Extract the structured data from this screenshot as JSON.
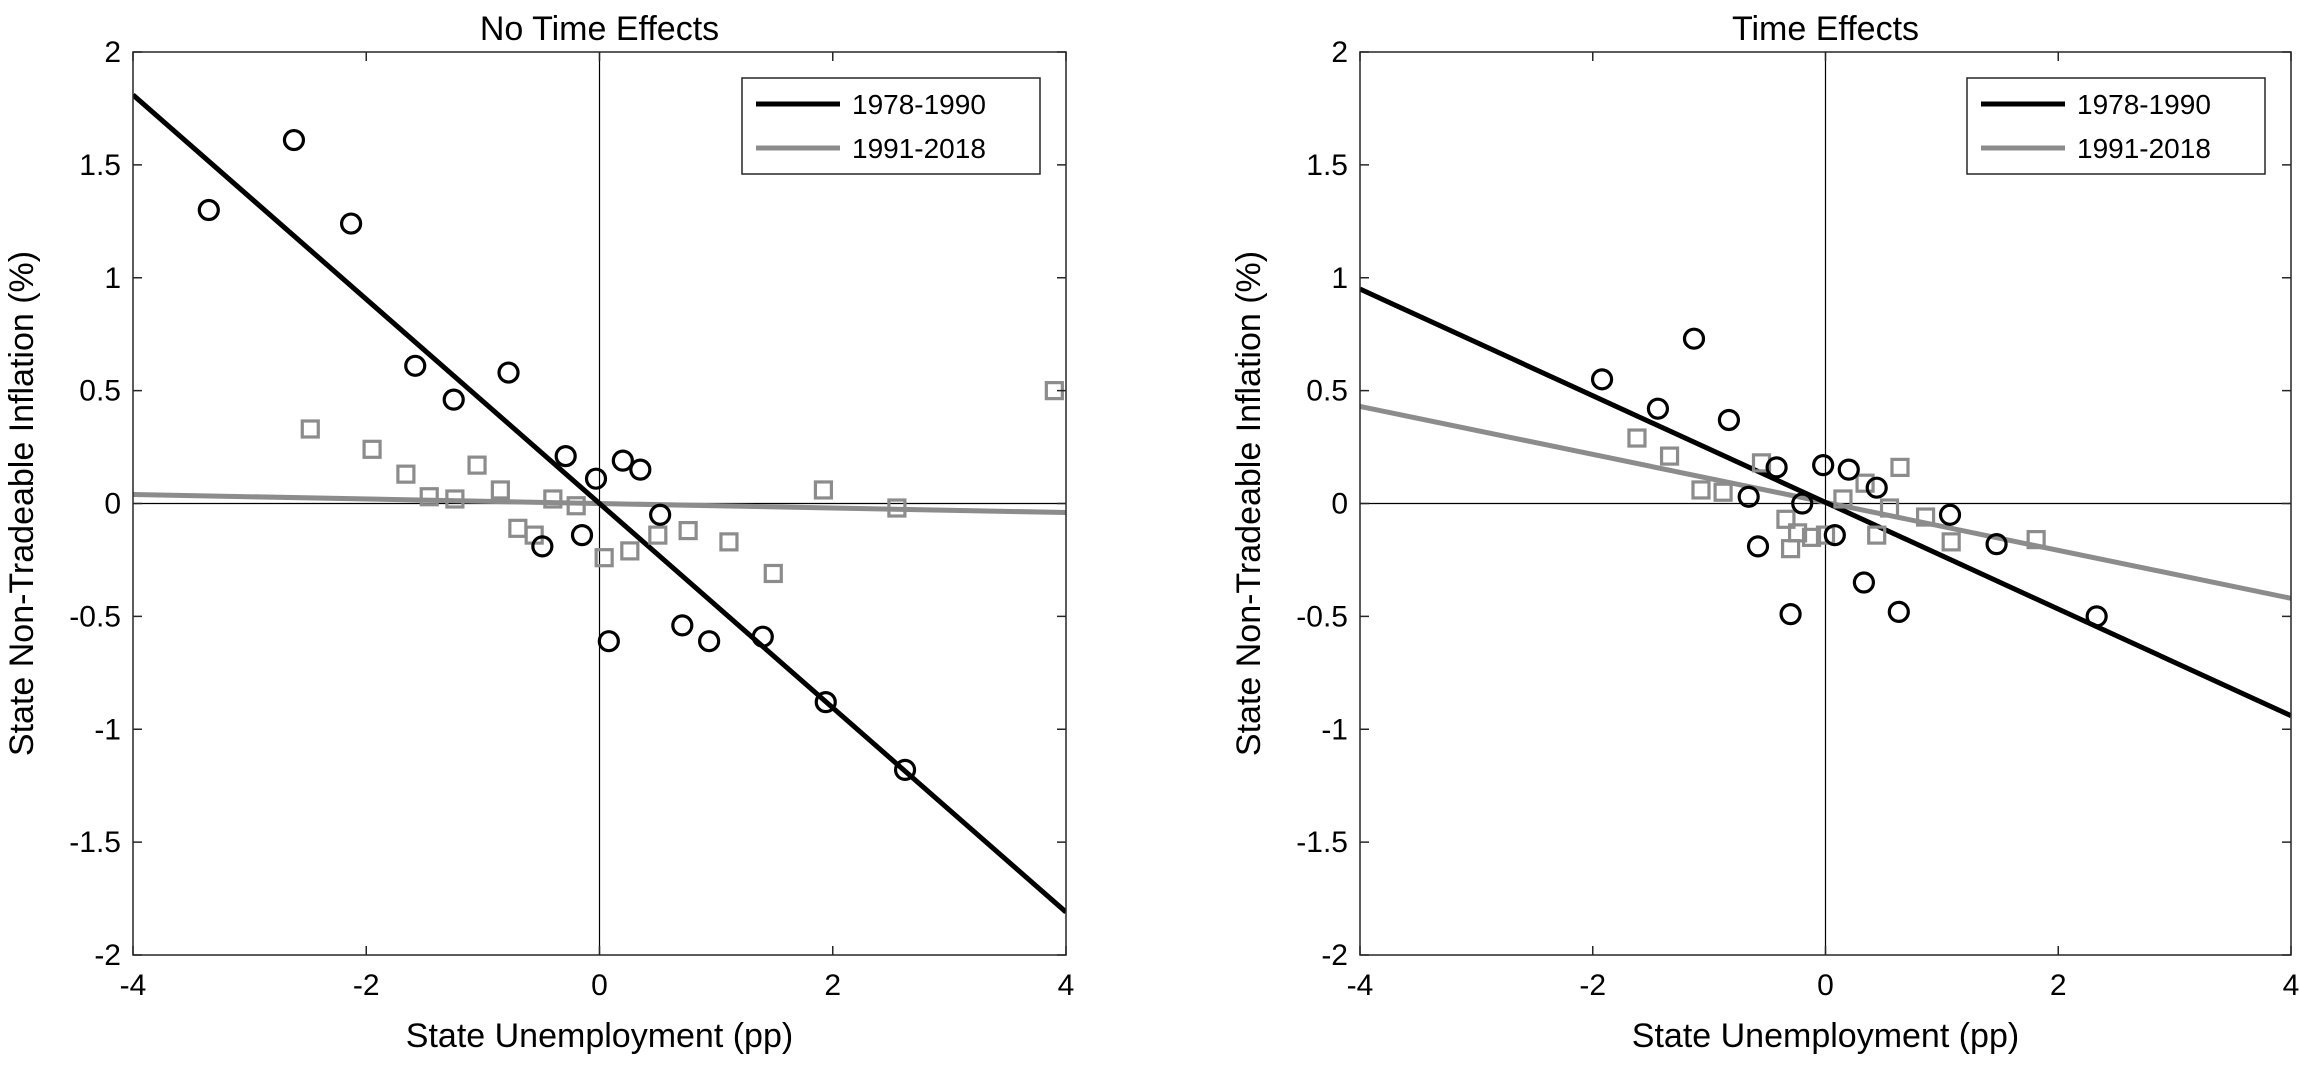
{
  "chart_data": [
    {
      "type": "scatter",
      "title": "No Time Effects",
      "xlabel": "State Unemployment (pp)",
      "ylabel": "State Non-Tradeable Inflation (%)",
      "xlim": [
        -4,
        4
      ],
      "ylim": [
        -2,
        2
      ],
      "xticks": [
        -4,
        -2,
        0,
        2,
        4
      ],
      "yticks": [
        -2,
        -1.5,
        -1,
        -0.5,
        0,
        0.5,
        1,
        1.5,
        2
      ],
      "xtick_labels": [
        "-4",
        "-2",
        "0",
        "2",
        "4"
      ],
      "ytick_labels": [
        "-2",
        "-1.5",
        "-1",
        "-0.5",
        "0",
        "0.5",
        "1",
        "1.5",
        "2"
      ],
      "grid": false,
      "zero_lines": true,
      "legend": {
        "position": "top-right",
        "entries": [
          "1978-1990",
          "1991-2018"
        ]
      },
      "series": [
        {
          "name": "1978-1990",
          "color": "#000000",
          "marker": "circle",
          "points": [
            [
              -3.35,
              1.3
            ],
            [
              -2.62,
              1.61
            ],
            [
              -2.13,
              1.24
            ],
            [
              -1.58,
              0.61
            ],
            [
              -1.25,
              0.46
            ],
            [
              -0.78,
              0.58
            ],
            [
              -0.29,
              0.21
            ],
            [
              -0.49,
              -0.19
            ],
            [
              -0.15,
              -0.14
            ],
            [
              -0.03,
              0.11
            ],
            [
              0.2,
              0.19
            ],
            [
              0.35,
              0.15
            ],
            [
              0.52,
              -0.05
            ],
            [
              0.08,
              -0.61
            ],
            [
              0.71,
              -0.54
            ],
            [
              0.94,
              -0.61
            ],
            [
              1.4,
              -0.59
            ],
            [
              1.94,
              -0.88
            ],
            [
              2.62,
              -1.18
            ]
          ],
          "fit": {
            "x": [
              -4,
              4
            ],
            "y": [
              1.81,
              -1.81
            ]
          }
        },
        {
          "name": "1991-2018",
          "color": "#8c8c8c",
          "marker": "square",
          "points": [
            [
              -2.48,
              0.33
            ],
            [
              -1.95,
              0.24
            ],
            [
              -1.66,
              0.13
            ],
            [
              -1.46,
              0.03
            ],
            [
              -1.24,
              0.02
            ],
            [
              -1.05,
              0.17
            ],
            [
              -0.85,
              0.06
            ],
            [
              -0.7,
              -0.11
            ],
            [
              -0.56,
              -0.14
            ],
            [
              -0.4,
              0.02
            ],
            [
              -0.2,
              -0.01
            ],
            [
              0.04,
              -0.24
            ],
            [
              0.26,
              -0.21
            ],
            [
              0.5,
              -0.14
            ],
            [
              0.76,
              -0.12
            ],
            [
              1.11,
              -0.17
            ],
            [
              1.49,
              -0.31
            ],
            [
              1.92,
              0.06
            ],
            [
              2.55,
              -0.02
            ],
            [
              3.9,
              0.5
            ]
          ],
          "fit": {
            "x": [
              -4,
              4
            ],
            "y": [
              0.04,
              -0.04
            ]
          }
        }
      ]
    },
    {
      "type": "scatter",
      "title": "Time Effects",
      "xlabel": "State Unemployment (pp)",
      "ylabel": "State Non-Tradeable Inflation (%)",
      "xlim": [
        -4,
        4
      ],
      "ylim": [
        -2,
        2
      ],
      "xticks": [
        -4,
        -2,
        0,
        2,
        4
      ],
      "yticks": [
        -2,
        -1.5,
        -1,
        -0.5,
        0,
        0.5,
        1,
        1.5,
        2
      ],
      "xtick_labels": [
        "-4",
        "-2",
        "0",
        "2",
        "4"
      ],
      "ytick_labels": [
        "-2",
        "-1.5",
        "-1",
        "-0.5",
        "0",
        "0.5",
        "1",
        "1.5",
        "2"
      ],
      "grid": false,
      "zero_lines": true,
      "legend": {
        "position": "top-right",
        "entries": [
          "1978-1990",
          "1991-2018"
        ]
      },
      "series": [
        {
          "name": "1978-1990",
          "color": "#000000",
          "marker": "circle",
          "points": [
            [
              -1.92,
              0.55
            ],
            [
              -1.44,
              0.42
            ],
            [
              -1.13,
              0.73
            ],
            [
              -0.83,
              0.37
            ],
            [
              -0.58,
              -0.19
            ],
            [
              -0.42,
              0.16
            ],
            [
              -0.66,
              0.03
            ],
            [
              -0.2,
              -0.0
            ],
            [
              -0.02,
              0.17
            ],
            [
              0.2,
              0.15
            ],
            [
              0.44,
              0.07
            ],
            [
              0.33,
              -0.35
            ],
            [
              -0.3,
              -0.49
            ],
            [
              0.63,
              -0.48
            ],
            [
              0.08,
              -0.14
            ],
            [
              1.07,
              -0.05
            ],
            [
              1.47,
              -0.18
            ],
            [
              2.33,
              -0.5
            ]
          ],
          "fit": {
            "x": [
              -4,
              4
            ],
            "y": [
              0.95,
              -0.94
            ]
          }
        },
        {
          "name": "1991-2018",
          "color": "#8c8c8c",
          "marker": "square",
          "points": [
            [
              -1.62,
              0.29
            ],
            [
              -1.34,
              0.21
            ],
            [
              -1.07,
              0.06
            ],
            [
              -0.88,
              0.05
            ],
            [
              -0.55,
              0.18
            ],
            [
              -0.34,
              -0.07
            ],
            [
              -0.24,
              -0.13
            ],
            [
              -0.12,
              -0.15
            ],
            [
              0.0,
              -0.14
            ],
            [
              0.15,
              0.02
            ],
            [
              0.34,
              0.09
            ],
            [
              0.55,
              -0.02
            ],
            [
              0.64,
              0.16
            ],
            [
              0.86,
              -0.06
            ],
            [
              1.08,
              -0.17
            ],
            [
              1.81,
              -0.16
            ],
            [
              -0.3,
              -0.2
            ],
            [
              0.44,
              -0.14
            ]
          ],
          "fit": {
            "x": [
              -4,
              4
            ],
            "y": [
              0.43,
              -0.42
            ]
          }
        }
      ]
    }
  ]
}
